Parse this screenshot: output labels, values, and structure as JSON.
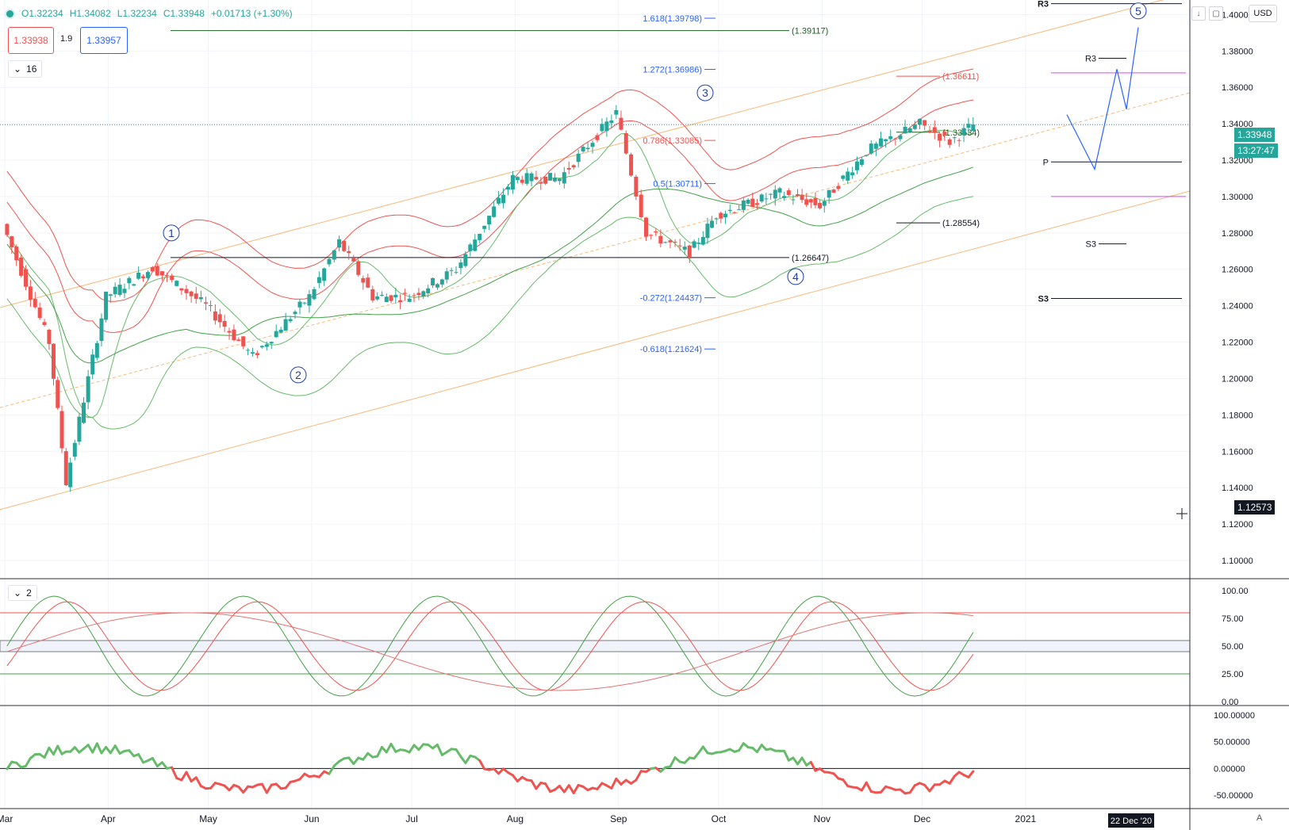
{
  "header": {
    "open": "O1.32234",
    "high": "H1.34082",
    "low": "L1.32234",
    "close": "C1.33948",
    "change": "+0.01713 (+1.30%)",
    "sell_price": "1.33938",
    "spread": "1.9",
    "buy_price": "1.33957",
    "indicator1_value": "16",
    "indicator2_value": "2",
    "currency": "USD",
    "auto_label": "A",
    "current_price": "1.33948",
    "countdown": "13:27:47",
    "crosshair_price": "1.12573",
    "crosshair_date": "22 Dec '20"
  },
  "colors": {
    "up": "#26a69a",
    "down": "#ef5350",
    "grid": "#f0f3fa",
    "channel": "#f7b97b",
    "bollinger": "#ef5350",
    "bollinger_green": "#66bb6a",
    "fib": "#2962ff",
    "pivot_magenta": "#e040fb"
  },
  "chart_data": [
    {
      "type": "line",
      "title": "",
      "x": [
        "2020-03-01",
        "2020-03-15",
        "2020-03-20",
        "2020-04-01",
        "2020-04-15",
        "2020-05-01",
        "2020-05-15",
        "2020-06-01",
        "2020-06-10",
        "2020-06-20",
        "2020-07-01",
        "2020-07-15",
        "2020-08-01",
        "2020-08-15",
        "2020-09-01",
        "2020-09-10",
        "2020-09-23",
        "2020-10-01",
        "2020-10-20",
        "2020-11-01",
        "2020-11-15",
        "2020-12-01",
        "2020-12-10",
        "2020-12-17"
      ],
      "series": [
        {
          "values": [
            1.285,
            1.22,
            1.143,
            1.245,
            1.261,
            1.24,
            1.212,
            1.245,
            1.275,
            1.245,
            1.245,
            1.26,
            1.31,
            1.31,
            1.346,
            1.28,
            1.269,
            1.29,
            1.302,
            1.295,
            1.325,
            1.34,
            1.33,
            1.3395
          ]
        }
      ],
      "price_axis_ticks": [
        "1.40000",
        "1.38000",
        "1.36000",
        "1.34000",
        "1.32000",
        "1.30000",
        "1.28000",
        "1.26000",
        "1.24000",
        "1.22000",
        "1.20000",
        "1.18000",
        "1.16000",
        "1.14000",
        "1.12000",
        "1.10000"
      ],
      "time_axis_ticks": [
        "Mar",
        "Apr",
        "May",
        "Jun",
        "Jul",
        "Aug",
        "Sep",
        "Oct",
        "Nov",
        "Dec",
        "2021"
      ],
      "ylim": [
        1.09,
        1.408
      ],
      "fibonacci_labels": [
        "1.618(1.39798)",
        "1.272(1.36986)",
        "0.786(1.33085)",
        "0.5(1.30711)",
        "-0.272(1.24437)",
        "-0.618(1.21624)"
      ],
      "level_labels": [
        "(1.39117)",
        "(1.36611)",
        "(1.33534)",
        "(1.28554)",
        "(1.26647)"
      ],
      "pivot_labels": [
        "R3",
        "R3",
        "P",
        "S3",
        "S3"
      ],
      "wave_labels": [
        "1",
        "2",
        "3",
        "4",
        "5"
      ],
      "grid": true
    },
    {
      "type": "line",
      "title": "",
      "ylim": [
        0,
        100
      ],
      "y_ticks": [
        "100.00",
        "75.00",
        "50.00",
        "25.00",
        "0.00"
      ],
      "levels": [
        80,
        55,
        45,
        25
      ]
    },
    {
      "type": "line",
      "title": "",
      "ylim": [
        -75,
        110
      ],
      "y_ticks": [
        "100.00000",
        "50.00000",
        "0.00000",
        "-50.00000"
      ]
    }
  ]
}
